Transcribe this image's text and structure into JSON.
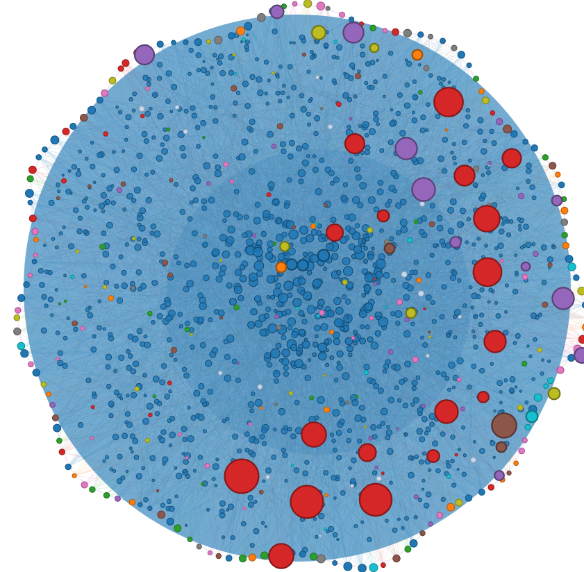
{
  "chart_data": {
    "type": "network",
    "layout": "radial-force",
    "background": "#ffffff",
    "dominant_cluster": "blue",
    "palette": {
      "blue": "#1f77b4",
      "red": "#d62728",
      "purple": "#9467bd",
      "brown": "#8c564b",
      "orange": "#ff7f0e",
      "olive": "#bcbd22",
      "cyan": "#17becf",
      "pink": "#e377c2",
      "green": "#2ca02c",
      "gray": "#7f7f7f",
      "light": "#c7d7ee"
    },
    "hubs": [
      {
        "id": "n1",
        "color": "red",
        "degree": 9.4
      },
      {
        "id": "n2",
        "color": "red",
        "degree": 8.9
      },
      {
        "id": "n3",
        "color": "red",
        "degree": 9.0
      },
      {
        "id": "n4",
        "color": "red",
        "degree": 8.0
      },
      {
        "id": "n5",
        "color": "red",
        "degree": 7.8
      },
      {
        "id": "n6",
        "color": "red",
        "degree": 7.2
      },
      {
        "id": "n7",
        "color": "red",
        "degree": 6.8
      },
      {
        "id": "n8",
        "color": "red",
        "degree": 6.8
      },
      {
        "id": "n9",
        "color": "red",
        "degree": 6.4
      },
      {
        "id": "n10",
        "color": "red",
        "degree": 6.0
      },
      {
        "id": "n11",
        "color": "red",
        "degree": 5.6
      },
      {
        "id": "n12",
        "color": "red",
        "degree": 5.4
      },
      {
        "id": "n13",
        "color": "red",
        "degree": 5.2
      },
      {
        "id": "n14",
        "color": "red",
        "degree": 4.8
      },
      {
        "id": "n15",
        "color": "red",
        "degree": 4.6
      },
      {
        "id": "n16",
        "color": "red",
        "degree": 3.4
      },
      {
        "id": "n17",
        "color": "red",
        "degree": 3.2
      },
      {
        "id": "n18",
        "color": "red",
        "degree": 3.0
      },
      {
        "id": "n19",
        "color": "purple",
        "degree": 6.4
      },
      {
        "id": "n20",
        "color": "purple",
        "degree": 6.0
      },
      {
        "id": "n21",
        "color": "purple",
        "degree": 6.0
      },
      {
        "id": "n22",
        "color": "purple",
        "degree": 5.6
      },
      {
        "id": "n23",
        "color": "purple",
        "degree": 5.4
      },
      {
        "id": "n24",
        "color": "purple",
        "degree": 4.2
      },
      {
        "id": "n25",
        "color": "purple",
        "degree": 3.6
      },
      {
        "id": "n26",
        "color": "purple",
        "degree": 3.0
      },
      {
        "id": "n27",
        "color": "purple",
        "degree": 2.8
      },
      {
        "id": "n28",
        "color": "purple",
        "degree": 2.6
      },
      {
        "id": "n29",
        "color": "purple",
        "degree": 2.4
      },
      {
        "id": "n30",
        "color": "brown",
        "degree": 6.8
      },
      {
        "id": "n31",
        "color": "brown",
        "degree": 2.8
      },
      {
        "id": "n32",
        "color": "brown",
        "degree": 2.8
      },
      {
        "id": "n33",
        "color": "olive",
        "degree": 3.8
      },
      {
        "id": "n34",
        "color": "olive",
        "degree": 3.2
      },
      {
        "id": "n35",
        "color": "olive",
        "degree": 2.8
      },
      {
        "id": "n36",
        "color": "olive",
        "degree": 2.4
      },
      {
        "id": "n37",
        "color": "cyan",
        "degree": 3.2
      },
      {
        "id": "n38",
        "color": "blue",
        "degree": 3.2
      },
      {
        "id": "n39",
        "color": "blue",
        "degree": 3.0
      },
      {
        "id": "n40",
        "color": "blue",
        "degree": 3.0
      },
      {
        "id": "n41",
        "color": "orange",
        "degree": 2.8
      },
      {
        "id": "n42",
        "color": "orange",
        "degree": 2.8
      },
      {
        "id": "n43",
        "color": "olive",
        "degree": 2.6
      }
    ],
    "periphery": {
      "node_count": 150,
      "color_mix": [
        "blue",
        "blue",
        "blue",
        "blue",
        "blue",
        "blue",
        "brown",
        "purple",
        "olive",
        "gray",
        "orange",
        "pink",
        "cyan",
        "green",
        "red"
      ]
    },
    "interior": {
      "node_count": 1100,
      "accent_count": 160
    }
  }
}
